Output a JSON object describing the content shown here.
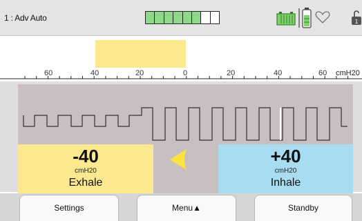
{
  "header": {
    "mode": "1 : Adv Auto",
    "level_meter": {
      "segments": 8,
      "filled": 6,
      "color": "#8fd889"
    },
    "icons": [
      "battery-charging-icon",
      "battery-vertical-icon",
      "heart-icon",
      "lock-icon"
    ]
  },
  "gauge": {
    "unit": "cmH20",
    "tick_labels": [
      "60",
      "40",
      "20",
      "0",
      "20",
      "40",
      "60"
    ],
    "bar": {
      "from": -40,
      "to": 0,
      "color": "#fbe88f"
    }
  },
  "readouts": {
    "exhale": {
      "value": "-40",
      "unit": "cmH20",
      "label": "Exhale"
    },
    "inhale": {
      "value": "+40",
      "unit": "cmH20",
      "label": "Inhale"
    },
    "direction_indicator": "triangle-left-icon"
  },
  "softkeys": {
    "settings": "Settings",
    "menu": "Menu▲",
    "standby": "Standby"
  },
  "colors": {
    "exhale": "#fbe88f",
    "inhale": "#a8dcf1",
    "waveform_bg": "#c8c0c0"
  }
}
